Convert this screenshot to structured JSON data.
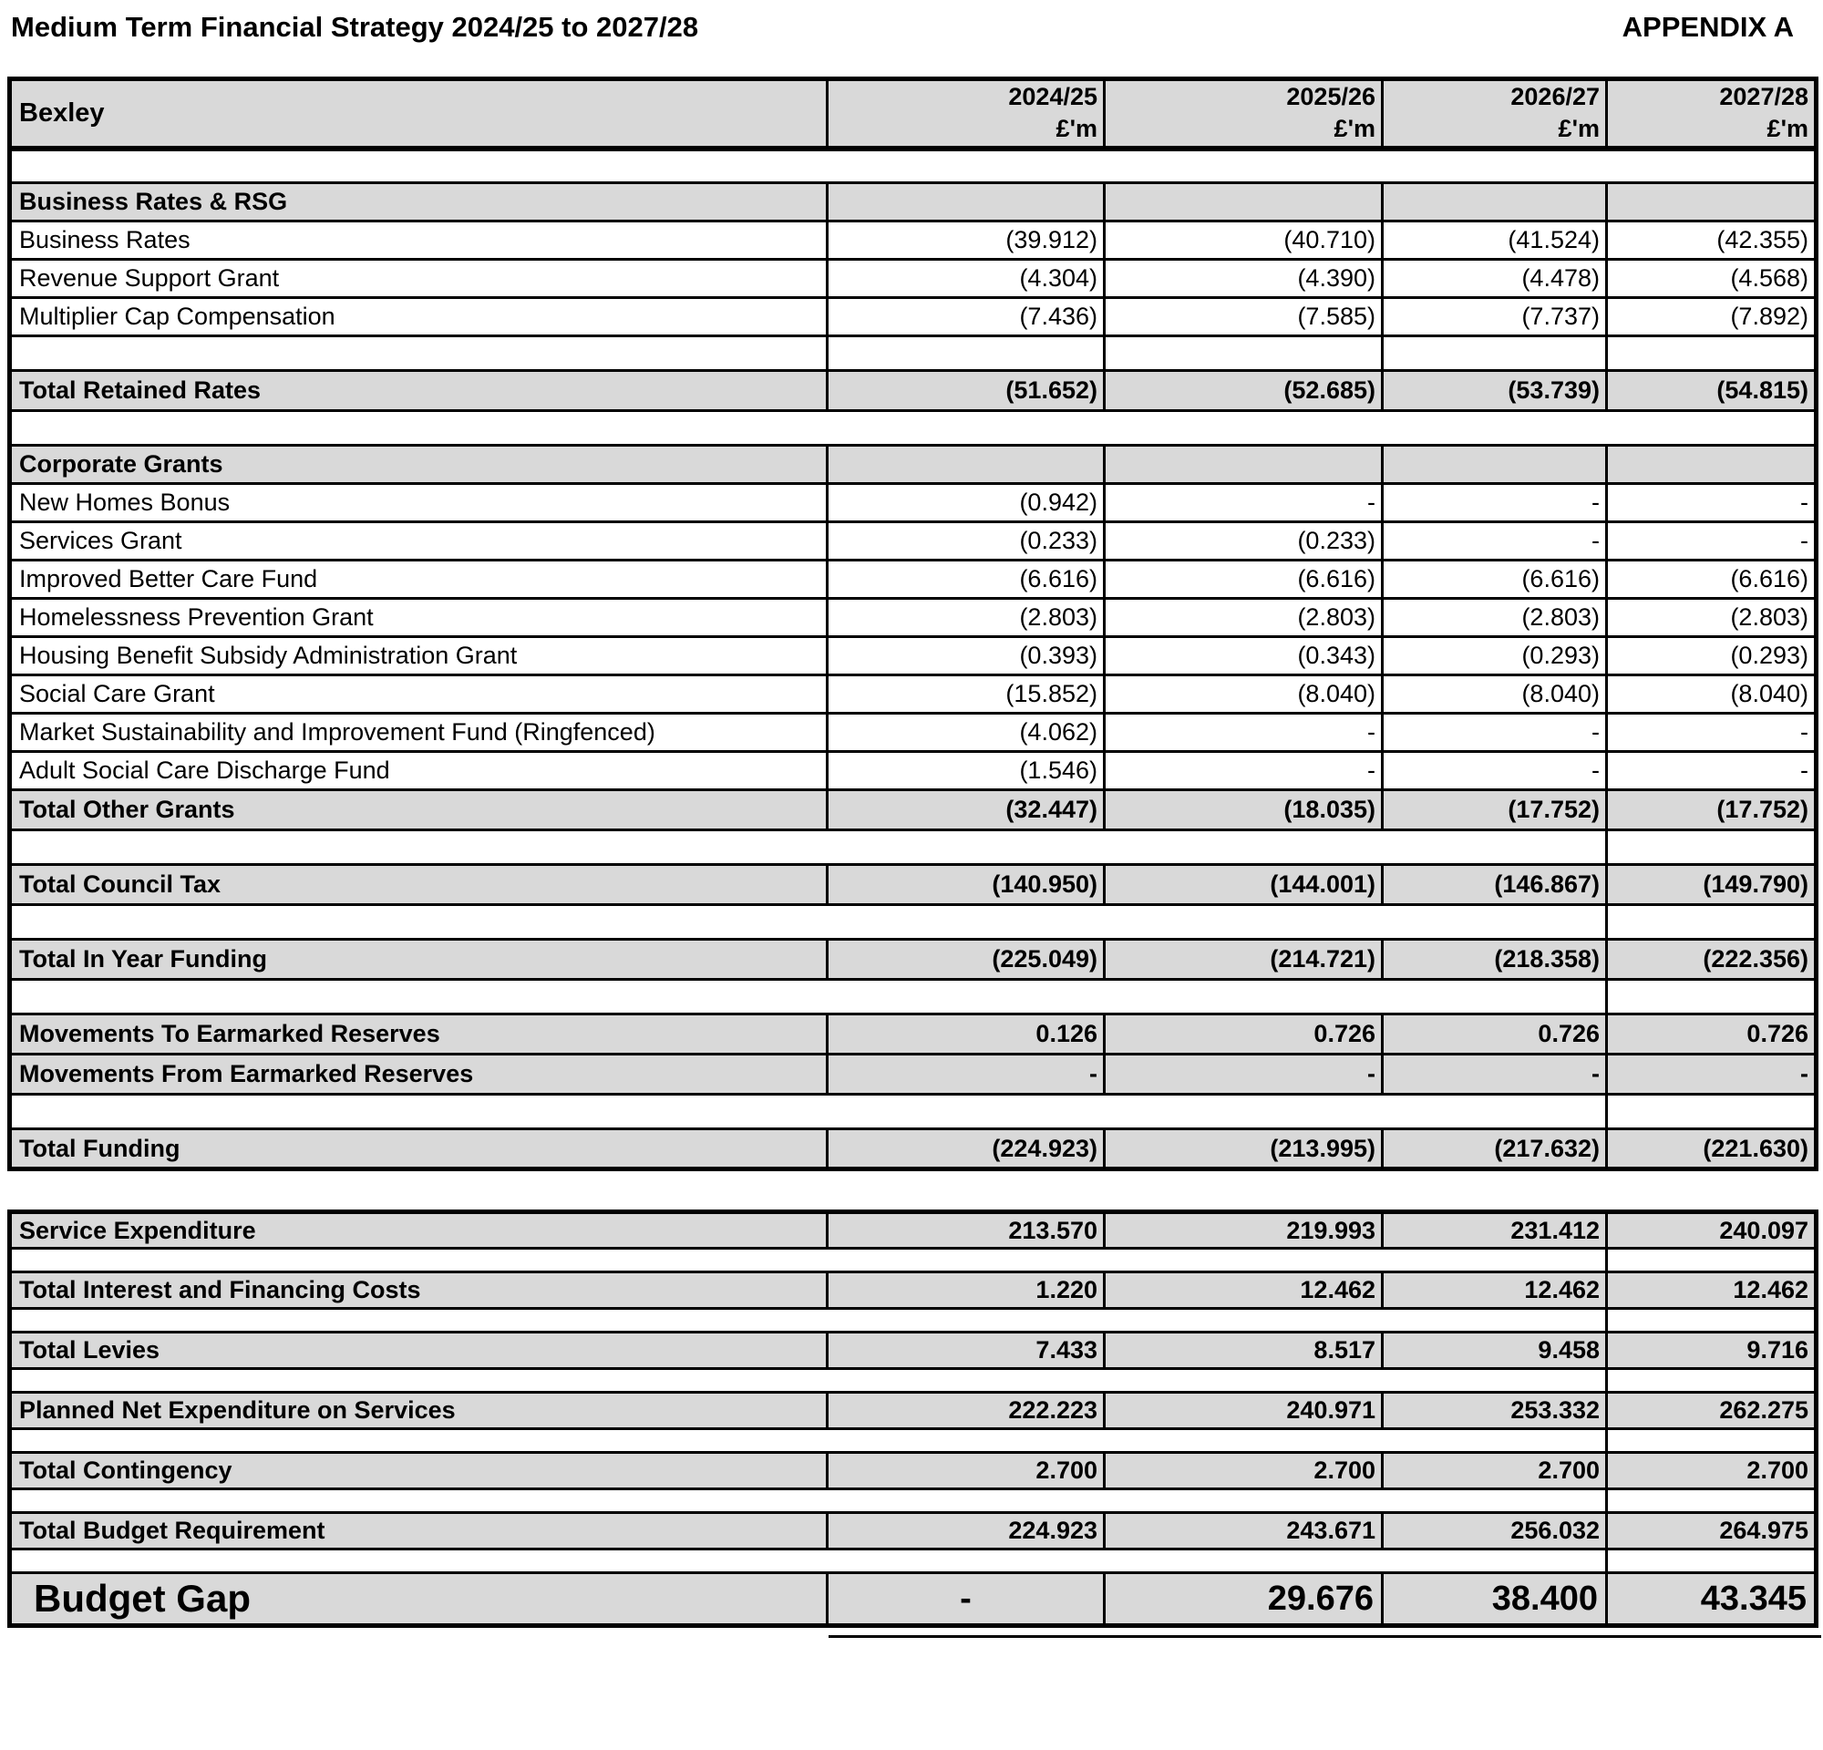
{
  "page": {
    "title": "Medium Term Financial Strategy 2024/25 to 2027/28",
    "appendix": "APPENDIX A"
  },
  "colors": {
    "row_fill": "#d9d9d9",
    "grid": "#000000"
  },
  "funding_table": {
    "corner_label": "Bexley",
    "year_headers": [
      "2024/25",
      "2025/26",
      "2026/27",
      "2027/28"
    ],
    "unit": "£'m",
    "rows": [
      {
        "type": "spacer",
        "label": "",
        "values": [
          "",
          "",
          "",
          ""
        ]
      },
      {
        "type": "section",
        "label": "Business Rates & RSG",
        "values": [
          "",
          "",
          "",
          ""
        ]
      },
      {
        "type": "data",
        "label": "Business Rates",
        "values": [
          "(39.912)",
          "(40.710)",
          "(41.524)",
          "(42.355)"
        ]
      },
      {
        "type": "data",
        "label": "Revenue Support Grant",
        "values": [
          "(4.304)",
          "(4.390)",
          "(4.478)",
          "(4.568)"
        ]
      },
      {
        "type": "data",
        "label": "Multiplier Cap Compensation",
        "values": [
          "(7.436)",
          "(7.585)",
          "(7.737)",
          "(7.892)"
        ]
      },
      {
        "type": "spacer-grid",
        "label": "",
        "values": [
          "",
          "",
          "",
          ""
        ]
      },
      {
        "type": "total",
        "label": "Total Retained Rates",
        "values": [
          "(51.652)",
          "(52.685)",
          "(53.739)",
          "(54.815)"
        ]
      },
      {
        "type": "spacer",
        "label": "",
        "values": [
          "",
          "",
          "",
          ""
        ]
      },
      {
        "type": "section",
        "label": "Corporate Grants",
        "values": [
          "",
          "",
          "",
          ""
        ]
      },
      {
        "type": "data",
        "label": "New Homes Bonus",
        "values": [
          "(0.942)",
          "-",
          "-",
          "-"
        ]
      },
      {
        "type": "data",
        "label": "Services Grant",
        "values": [
          "(0.233)",
          "(0.233)",
          "-",
          "-"
        ]
      },
      {
        "type": "data",
        "label": "Improved Better Care Fund",
        "values": [
          "(6.616)",
          "(6.616)",
          "(6.616)",
          "(6.616)"
        ]
      },
      {
        "type": "data",
        "label": "Homelessness Prevention Grant",
        "values": [
          "(2.803)",
          "(2.803)",
          "(2.803)",
          "(2.803)"
        ]
      },
      {
        "type": "data",
        "label": "Housing Benefit Subsidy Administration Grant",
        "values": [
          "(0.393)",
          "(0.343)",
          "(0.293)",
          "(0.293)"
        ]
      },
      {
        "type": "data",
        "label": "Social Care Grant",
        "values": [
          "(15.852)",
          "(8.040)",
          "(8.040)",
          "(8.040)"
        ]
      },
      {
        "type": "data",
        "label": "Market Sustainability and Improvement Fund (Ringfenced)",
        "values": [
          "(4.062)",
          "-",
          "-",
          "-"
        ]
      },
      {
        "type": "data",
        "label": "Adult Social Care Discharge Fund",
        "values": [
          "(1.546)",
          "-",
          "-",
          "-"
        ]
      },
      {
        "type": "total",
        "label": "Total Other Grants",
        "values": [
          "(32.447)",
          "(18.035)",
          "(17.752)",
          "(17.752)"
        ]
      },
      {
        "type": "spacer4",
        "label": "",
        "values": [
          "",
          "",
          "",
          ""
        ]
      },
      {
        "type": "total",
        "label": "Total Council Tax",
        "values": [
          "(140.950)",
          "(144.001)",
          "(146.867)",
          "(149.790)"
        ]
      },
      {
        "type": "spacer4",
        "label": "",
        "values": [
          "",
          "",
          "",
          ""
        ]
      },
      {
        "type": "total",
        "label": "Total In Year Funding",
        "values": [
          "(225.049)",
          "(214.721)",
          "(218.358)",
          "(222.356)"
        ]
      },
      {
        "type": "spacer4",
        "label": "",
        "values": [
          "",
          "",
          "",
          ""
        ]
      },
      {
        "type": "total",
        "label": "Movements To Earmarked Reserves",
        "values": [
          "0.126",
          "0.726",
          "0.726",
          "0.726"
        ]
      },
      {
        "type": "total",
        "label": "Movements From Earmarked Reserves",
        "values": [
          "-",
          "-",
          "-",
          "-"
        ]
      },
      {
        "type": "spacer4",
        "label": "",
        "values": [
          "",
          "",
          "",
          ""
        ]
      },
      {
        "type": "total",
        "label": "Total Funding",
        "values": [
          "(224.923)",
          "(213.995)",
          "(217.632)",
          "(221.630)"
        ]
      }
    ]
  },
  "expenditure_table": {
    "rows": [
      {
        "type": "total",
        "label": "Service Expenditure",
        "values": [
          "213.570",
          "219.993",
          "231.412",
          "240.097"
        ]
      },
      {
        "type": "spacer4",
        "label": "",
        "values": [
          "",
          "",
          "",
          ""
        ]
      },
      {
        "type": "total",
        "label": "Total Interest and Financing Costs",
        "values": [
          "1.220",
          "12.462",
          "12.462",
          "12.462"
        ]
      },
      {
        "type": "spacer4",
        "label": "",
        "values": [
          "",
          "",
          "",
          ""
        ]
      },
      {
        "type": "total",
        "label": "Total Levies",
        "values": [
          "7.433",
          "8.517",
          "9.458",
          "9.716"
        ]
      },
      {
        "type": "spacer4",
        "label": "",
        "values": [
          "",
          "",
          "",
          ""
        ]
      },
      {
        "type": "total",
        "label": "Planned Net Expenditure on Services",
        "values": [
          "222.223",
          "240.971",
          "253.332",
          "262.275"
        ]
      },
      {
        "type": "spacer4",
        "label": "",
        "values": [
          "",
          "",
          "",
          ""
        ]
      },
      {
        "type": "total",
        "label": "Total Contingency",
        "values": [
          "2.700",
          "2.700",
          "2.700",
          "2.700"
        ]
      },
      {
        "type": "spacer4",
        "label": "",
        "values": [
          "",
          "",
          "",
          ""
        ]
      },
      {
        "type": "total",
        "label": "Total Budget Requirement",
        "values": [
          "224.923",
          "243.671",
          "256.032",
          "264.975"
        ]
      },
      {
        "type": "spacer4",
        "label": "",
        "values": [
          "",
          "",
          "",
          ""
        ]
      },
      {
        "type": "gap",
        "label": "Budget Gap",
        "values": [
          "-",
          "29.676",
          "38.400",
          "43.345"
        ]
      }
    ]
  }
}
